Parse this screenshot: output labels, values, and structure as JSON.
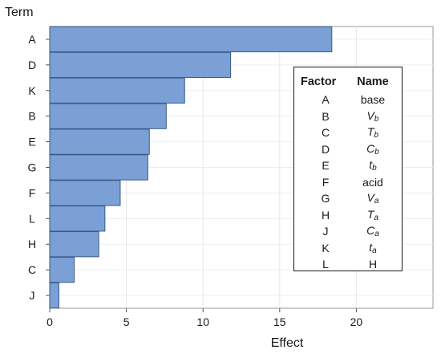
{
  "chart_data": {
    "type": "bar",
    "orientation": "horizontal",
    "title": "",
    "xlabel": "Effect",
    "ylabel": "Term",
    "categories": [
      "A",
      "D",
      "K",
      "B",
      "E",
      "G",
      "F",
      "L",
      "H",
      "C",
      "J"
    ],
    "values": [
      18.4,
      11.8,
      8.8,
      7.6,
      6.5,
      6.4,
      4.6,
      3.6,
      3.2,
      1.6,
      0.6
    ],
    "xlim": [
      0,
      25
    ],
    "xticks": [
      0,
      5,
      10,
      15,
      20
    ],
    "grid": "on",
    "bar_color": "#7aa0d6",
    "bar_edge_color": "#3c5a86",
    "legend_placement": "right",
    "legend": {
      "headers": [
        "Factor",
        "Name"
      ],
      "rows": [
        {
          "factor": "A",
          "name": "base",
          "italic": false,
          "base": "",
          "sub": ""
        },
        {
          "factor": "B",
          "name": "",
          "italic": true,
          "base": "V",
          "sub": "b"
        },
        {
          "factor": "C",
          "name": "",
          "italic": true,
          "base": "T",
          "sub": "b"
        },
        {
          "factor": "D",
          "name": "",
          "italic": true,
          "base": "C",
          "sub": "b"
        },
        {
          "factor": "E",
          "name": "",
          "italic": true,
          "base": "t",
          "sub": "b"
        },
        {
          "factor": "F",
          "name": "acid",
          "italic": false,
          "base": "",
          "sub": ""
        },
        {
          "factor": "G",
          "name": "",
          "italic": true,
          "base": "V",
          "sub": "a"
        },
        {
          "factor": "H",
          "name": "",
          "italic": true,
          "base": "T",
          "sub": "a"
        },
        {
          "factor": "J",
          "name": "",
          "italic": true,
          "base": "C",
          "sub": "a"
        },
        {
          "factor": "K",
          "name": "",
          "italic": true,
          "base": "t",
          "sub": "a"
        },
        {
          "factor": "L",
          "name": "H",
          "italic": false,
          "base": "",
          "sub": ""
        }
      ]
    }
  }
}
